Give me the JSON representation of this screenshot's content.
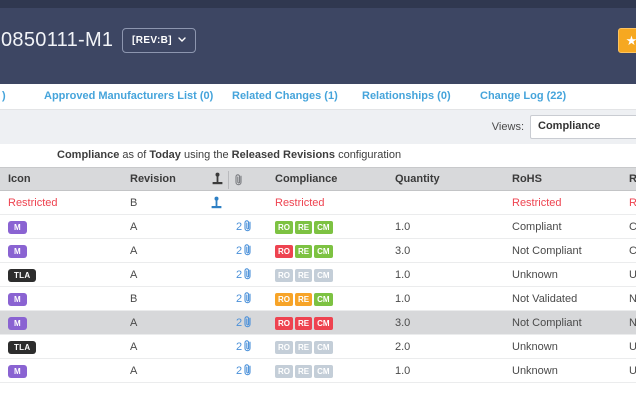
{
  "window": {
    "title": "0850111-M1",
    "rev_label": "[REV:B]",
    "star_icon": "★"
  },
  "tabs": [
    ")",
    "Approved Manufacturers List (0)",
    "Related Changes (1)",
    "Relationships (0)",
    "Change Log (22)"
  ],
  "views": {
    "label": "Views:",
    "selected": "Compliance"
  },
  "config_line": {
    "b1": "Compliance",
    "t1": " as of ",
    "b2": "Today",
    "t2": " using the ",
    "b3": "Released Revisions",
    "t3": " configuration"
  },
  "table": {
    "columns": {
      "icon": "Icon",
      "revision": "Revision",
      "compliance": "Compliance",
      "quantity": "Quantity",
      "rohs": "RoHS",
      "fragment": "R"
    },
    "colors": {
      "purple": "#8a63d2",
      "black": "#2d2d2d",
      "green": "#7dc242",
      "red": "#ee4350",
      "orange": "#f7a428",
      "gray": "#c4ced8",
      "stamp_blue": "#2d7fc4",
      "link_blue": "#4a90d9",
      "restricted_red": "#ee4350"
    },
    "rows": [
      {
        "icon": {
          "type": "text",
          "text": "Restricted"
        },
        "revision": "B",
        "stamp": true,
        "files": "",
        "compliance": {
          "type": "text",
          "text": "Restricted"
        },
        "quantity": "",
        "rohs": "Restricted",
        "rohs_red": true,
        "fragment": "R",
        "fragment_red": true,
        "selected": false
      },
      {
        "icon": {
          "type": "badge",
          "text": "M",
          "color": "purple"
        },
        "revision": "A",
        "stamp": false,
        "files": "2",
        "compliance": {
          "type": "badges",
          "badges": [
            [
              "RO",
              "green"
            ],
            [
              "RE",
              "green"
            ],
            [
              "CM",
              "green"
            ]
          ]
        },
        "quantity": "1.0",
        "rohs": "Compliant",
        "fragment": "C",
        "selected": false
      },
      {
        "icon": {
          "type": "badge",
          "text": "M",
          "color": "purple"
        },
        "revision": "A",
        "stamp": false,
        "files": "2",
        "compliance": {
          "type": "badges",
          "badges": [
            [
              "RO",
              "red"
            ],
            [
              "RE",
              "green"
            ],
            [
              "CM",
              "green"
            ]
          ]
        },
        "quantity": "3.0",
        "rohs": "Not Compliant",
        "fragment": "C",
        "selected": false
      },
      {
        "icon": {
          "type": "badge",
          "text": "TLA",
          "color": "black"
        },
        "revision": "A",
        "stamp": false,
        "files": "2",
        "compliance": {
          "type": "badges",
          "badges": [
            [
              "RO",
              "gray"
            ],
            [
              "RE",
              "gray"
            ],
            [
              "CM",
              "gray"
            ]
          ]
        },
        "quantity": "1.0",
        "rohs": "Unknown",
        "fragment": "U",
        "selected": false
      },
      {
        "icon": {
          "type": "badge",
          "text": "M",
          "color": "purple"
        },
        "revision": "B",
        "stamp": false,
        "files": "2",
        "compliance": {
          "type": "badges",
          "badges": [
            [
              "RO",
              "orange"
            ],
            [
              "RE",
              "orange"
            ],
            [
              "CM",
              "green"
            ]
          ]
        },
        "quantity": "1.0",
        "rohs": "Not Validated",
        "fragment": "N",
        "selected": false
      },
      {
        "icon": {
          "type": "badge",
          "text": "M",
          "color": "purple"
        },
        "revision": "A",
        "stamp": false,
        "files": "2",
        "compliance": {
          "type": "badges",
          "badges": [
            [
              "RO",
              "red"
            ],
            [
              "RE",
              "red"
            ],
            [
              "CM",
              "red"
            ]
          ]
        },
        "quantity": "3.0",
        "rohs": "Not Compliant",
        "fragment": "N",
        "selected": true
      },
      {
        "icon": {
          "type": "badge",
          "text": "TLA",
          "color": "black"
        },
        "revision": "A",
        "stamp": false,
        "files": "2",
        "compliance": {
          "type": "badges",
          "badges": [
            [
              "RO",
              "gray"
            ],
            [
              "RE",
              "gray"
            ],
            [
              "CM",
              "gray"
            ]
          ]
        },
        "quantity": "2.0",
        "rohs": "Unknown",
        "fragment": "U",
        "selected": false
      },
      {
        "icon": {
          "type": "badge",
          "text": "M",
          "color": "purple"
        },
        "revision": "A",
        "stamp": false,
        "files": "2",
        "compliance": {
          "type": "badges",
          "badges": [
            [
              "RO",
              "gray"
            ],
            [
              "RE",
              "gray"
            ],
            [
              "CM",
              "gray"
            ]
          ]
        },
        "quantity": "1.0",
        "rohs": "Unknown",
        "fragment": "U",
        "selected": false
      }
    ]
  }
}
